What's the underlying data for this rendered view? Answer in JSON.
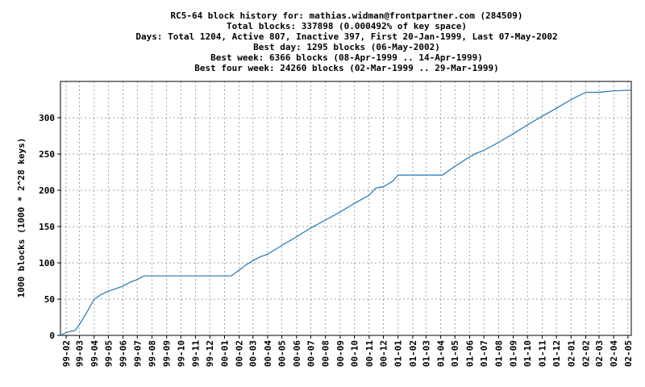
{
  "chart_data": {
    "type": "line",
    "title_lines": [
      "RC5-64 block history for: mathias.widman@frontpartner.com (284509)",
      "Total blocks: 337898 (0.000492% of key space)",
      "Days: Total 1204,  Active 807, Inactive 397, First 20-Jan-1999, Last 07-May-2002",
      "Best day: 1295 blocks (06-May-2002)",
      "Best week: 6366 blocks (08-Apr-1999 .. 14-Apr-1999)",
      "Best four week: 24260 blocks (02-Mar-1999 .. 29-Mar-1999)"
    ],
    "xlabel": "",
    "ylabel": "1000 blocks (1000 * 2^28 keys)",
    "ylim": [
      0,
      350
    ],
    "yticks": [
      0,
      50,
      100,
      150,
      200,
      250,
      300
    ],
    "x_tick_labels": [
      "99-02",
      "99-03",
      "99-04",
      "99-05",
      "99-06",
      "99-07",
      "99-08",
      "99-09",
      "99-10",
      "99-11",
      "99-12",
      "00-01",
      "00-02",
      "00-03",
      "00-04",
      "00-05",
      "00-06",
      "00-07",
      "00-08",
      "00-09",
      "00-10",
      "00-11",
      "00-12",
      "01-01",
      "01-02",
      "01-03",
      "01-04",
      "01-05",
      "01-06",
      "01-07",
      "01-08",
      "01-09",
      "01-10",
      "01-11",
      "01-12",
      "02-01",
      "02-02",
      "02-03",
      "02-04",
      "02-05"
    ],
    "grid": true,
    "line_color": "#1f77b4",
    "series": [
      {
        "x": [
          "1999-01-20",
          "1999-02-01",
          "1999-02-20",
          "1999-03-01",
          "1999-03-15",
          "1999-04-01",
          "1999-04-15",
          "1999-05-01",
          "1999-05-15",
          "1999-06-01",
          "1999-06-15",
          "1999-07-01",
          "1999-07-15",
          "1999-08-01",
          "1999-09-01",
          "1999-10-01",
          "1999-11-01",
          "1999-12-01",
          "2000-01-01",
          "2000-01-15",
          "2000-02-01",
          "2000-02-15",
          "2000-03-01",
          "2000-03-15",
          "2000-04-01",
          "2000-05-01",
          "2000-06-01",
          "2000-07-01",
          "2000-08-01",
          "2000-09-01",
          "2000-10-01",
          "2000-11-01",
          "2000-11-15",
          "2000-12-01",
          "2000-12-20",
          "2001-01-01",
          "2001-02-01",
          "2001-03-01",
          "2001-04-01",
          "2001-04-05",
          "2001-05-01",
          "2001-06-01",
          "2001-06-15",
          "2001-07-01",
          "2001-08-01",
          "2001-09-01",
          "2001-10-01",
          "2001-11-01",
          "2001-12-01",
          "2002-01-01",
          "2002-02-01",
          "2002-03-01",
          "2002-03-15",
          "2002-04-01",
          "2002-05-07"
        ],
        "y": [
          0,
          4,
          7,
          15,
          30,
          50,
          56,
          61,
          64,
          68,
          73,
          77,
          82,
          82,
          82,
          82,
          82,
          82,
          82,
          82,
          90,
          97,
          103,
          108,
          112,
          124,
          136,
          148,
          159,
          170,
          182,
          193,
          203,
          205,
          212,
          221,
          221,
          221,
          221,
          221,
          233,
          246,
          251,
          255,
          266,
          278,
          290,
          302,
          313,
          325,
          335,
          335,
          336,
          337,
          338
        ]
      }
    ]
  }
}
